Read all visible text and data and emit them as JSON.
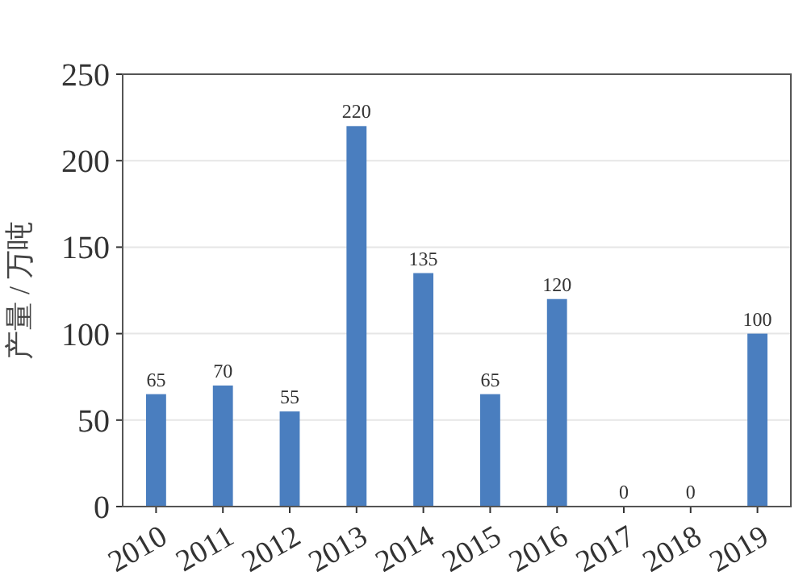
{
  "chart_data": {
    "type": "bar",
    "ylabel": "产量 / 万吨",
    "categories": [
      "2010",
      "2011",
      "2012",
      "2013",
      "2014",
      "2015",
      "2016",
      "2017",
      "2018",
      "2019"
    ],
    "values": [
      65,
      70,
      55,
      220,
      135,
      65,
      120,
      0,
      0,
      100
    ],
    "color": "#4a7ebf",
    "ylim": [
      0,
      250
    ],
    "yticks": [
      0,
      50,
      100,
      150,
      200,
      250
    ],
    "grid": "y",
    "data_labels": true
  }
}
